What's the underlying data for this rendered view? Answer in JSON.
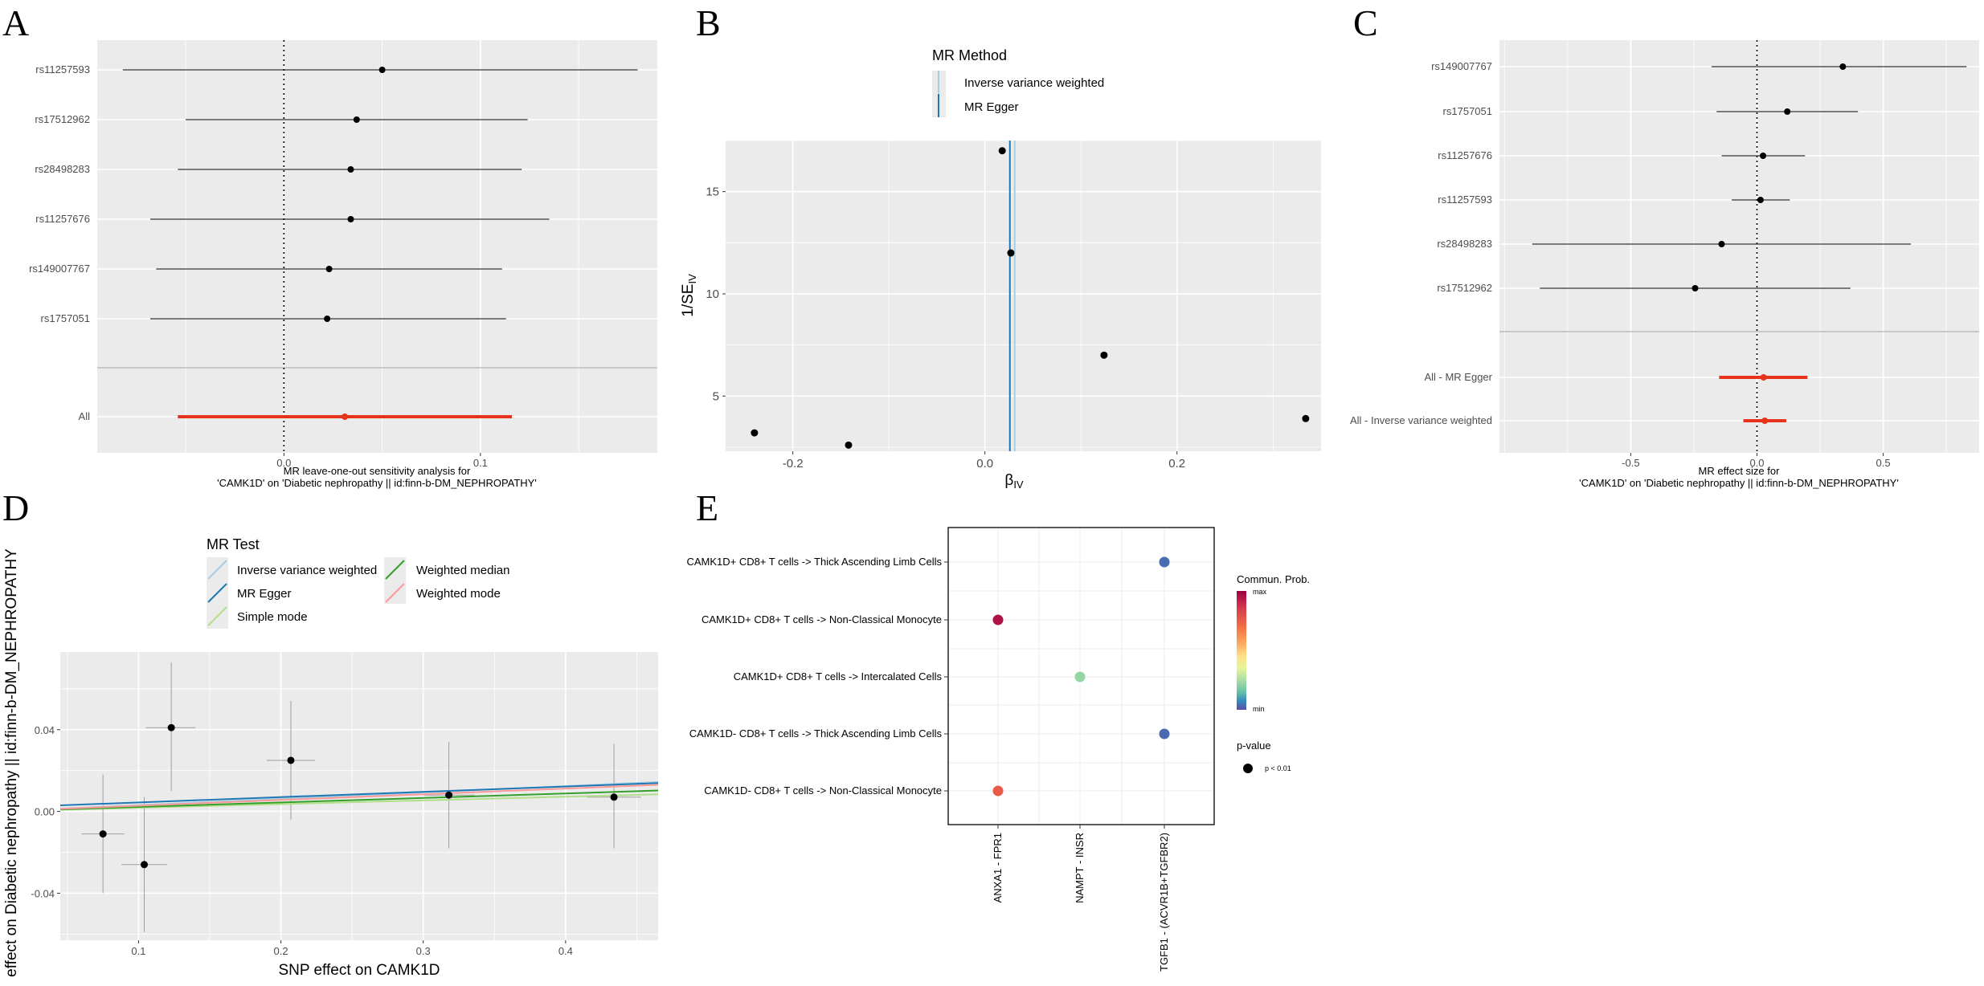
{
  "panel_labels": [
    "A",
    "B",
    "C",
    "D",
    "E"
  ],
  "chart_data": [
    {
      "panel": "A",
      "type": "forest",
      "xlabel_line1": "MR leave-one-out sensitivity analysis for",
      "xlabel_line2": "'CAMK1D' on 'Diabetic nephropathy || id:finn-b-DM_NEPHROPATHY'",
      "xlim": [
        -0.095,
        0.19
      ],
      "xticks": [
        {
          "v": 0.0,
          "label": "0.0"
        },
        {
          "v": 0.1,
          "label": "0.1"
        }
      ],
      "rows": [
        {
          "label": "rs11257593",
          "est": 0.05,
          "lo": -0.082,
          "hi": 0.18
        },
        {
          "label": "rs17512962",
          "est": 0.037,
          "lo": -0.05,
          "hi": 0.124
        },
        {
          "label": "rs28498283",
          "est": 0.034,
          "lo": -0.054,
          "hi": 0.121
        },
        {
          "label": "rs11257676",
          "est": 0.034,
          "lo": -0.068,
          "hi": 0.135
        },
        {
          "label": "rs149007767",
          "est": 0.023,
          "lo": -0.065,
          "hi": 0.111
        },
        {
          "label": "rs1757051",
          "est": 0.022,
          "lo": -0.068,
          "hi": 0.113
        }
      ],
      "overall": {
        "label": "All",
        "est": 0.031,
        "lo": -0.054,
        "hi": 0.116,
        "color": "#e8331c"
      }
    },
    {
      "panel": "B",
      "type": "funnel",
      "xlabel": "β",
      "xlabel_sub": "IV",
      "ylabel": "1/SE",
      "ylabel_sub": "IV",
      "xlim": [
        -0.27,
        0.35
      ],
      "ylim": [
        2.3,
        17.5
      ],
      "xticks": [
        {
          "v": -0.2,
          "label": "-0.2"
        },
        {
          "v": 0.0,
          "label": "0.0"
        },
        {
          "v": 0.2,
          "label": "0.2"
        }
      ],
      "yticks": [
        {
          "v": 5,
          "label": "5"
        },
        {
          "v": 10,
          "label": "10"
        },
        {
          "v": 15,
          "label": "15"
        }
      ],
      "points": [
        {
          "x": 0.018,
          "y": 17.0
        },
        {
          "x": 0.027,
          "y": 12.0
        },
        {
          "x": 0.124,
          "y": 7.0
        },
        {
          "x": 0.334,
          "y": 3.9
        },
        {
          "x": -0.24,
          "y": 3.2
        },
        {
          "x": -0.142,
          "y": 2.6
        }
      ],
      "lines": [
        {
          "name": "Inverse variance weighted",
          "x": 0.031,
          "color": "#a6cee3"
        },
        {
          "name": "MR Egger",
          "x": 0.026,
          "color": "#1f78b4"
        }
      ],
      "legend_title": "MR Method",
      "legend": [
        {
          "name": "Inverse variance weighted",
          "color": "#a6cee3"
        },
        {
          "name": "MR Egger",
          "color": "#1f78b4"
        }
      ]
    },
    {
      "panel": "C",
      "type": "forest",
      "xlabel_line1": "MR effect size for",
      "xlabel_line2": "'CAMK1D' on 'Diabetic nephropathy || id:finn-b-DM_NEPHROPATHY'",
      "xlim": [
        -1.02,
        0.88
      ],
      "xticks": [
        {
          "v": -0.5,
          "label": "-0.5"
        },
        {
          "v": 0.0,
          "label": "0.0"
        },
        {
          "v": 0.5,
          "label": "0.5"
        }
      ],
      "rows": [
        {
          "label": "rs149007767",
          "est": 0.34,
          "lo": -0.18,
          "hi": 0.83
        },
        {
          "label": "rs1757051",
          "est": 0.12,
          "lo": -0.16,
          "hi": 0.4
        },
        {
          "label": "rs11257676",
          "est": 0.024,
          "lo": -0.14,
          "hi": 0.19
        },
        {
          "label": "rs11257593",
          "est": 0.014,
          "lo": -0.1,
          "hi": 0.13
        },
        {
          "label": "rs28498283",
          "est": -0.14,
          "lo": -0.89,
          "hi": 0.61
        },
        {
          "label": "rs17512962",
          "est": -0.245,
          "lo": -0.86,
          "hi": 0.37
        }
      ],
      "summary": [
        {
          "label": "All - MR Egger",
          "est": 0.026,
          "lo": -0.15,
          "hi": 0.2,
          "color": "#e8331c"
        },
        {
          "label": "All - Inverse variance weighted",
          "est": 0.031,
          "lo": -0.054,
          "hi": 0.116,
          "color": "#e8331c"
        }
      ]
    },
    {
      "panel": "D",
      "type": "scatter",
      "xlabel": "SNP effect on CAMK1D",
      "ylabel": "effect on Diabetic nephropathy || id:finn-b-DM_NEPHROPATHY",
      "xlim": [
        0.045,
        0.465
      ],
      "ylim": [
        -0.063,
        0.078
      ],
      "xticks": [
        {
          "v": 0.1,
          "label": "0.1"
        },
        {
          "v": 0.2,
          "label": "0.2"
        },
        {
          "v": 0.3,
          "label": "0.3"
        },
        {
          "v": 0.4,
          "label": "0.4"
        }
      ],
      "yticks": [
        {
          "v": -0.04,
          "label": "-0.04"
        },
        {
          "v": 0.0,
          "label": "0.00"
        },
        {
          "v": 0.04,
          "label": "0.04"
        }
      ],
      "points": [
        {
          "x": 0.075,
          "y": -0.011,
          "xlo": 0.06,
          "xhi": 0.09,
          "ylo": -0.04,
          "yhi": 0.018
        },
        {
          "x": 0.104,
          "y": -0.026,
          "xlo": 0.088,
          "xhi": 0.12,
          "ylo": -0.059,
          "yhi": 0.007
        },
        {
          "x": 0.123,
          "y": 0.041,
          "xlo": 0.105,
          "xhi": 0.14,
          "ylo": 0.01,
          "yhi": 0.073
        },
        {
          "x": 0.207,
          "y": 0.025,
          "xlo": 0.19,
          "xhi": 0.224,
          "ylo": -0.004,
          "yhi": 0.054
        },
        {
          "x": 0.318,
          "y": 0.008,
          "xlo": 0.3,
          "xhi": 0.336,
          "ylo": -0.018,
          "yhi": 0.034
        },
        {
          "x": 0.434,
          "y": 0.007,
          "xlo": 0.415,
          "xhi": 0.453,
          "ylo": -0.018,
          "yhi": 0.033
        }
      ],
      "lines": [
        {
          "name": "Inverse variance weighted",
          "slope": 0.031,
          "intercept": 0.0,
          "color": "#a6cee3"
        },
        {
          "name": "MR Egger",
          "slope": 0.026,
          "intercept": 0.0018,
          "color": "#1f78b4"
        },
        {
          "name": "Simple mode",
          "slope": 0.018,
          "intercept": 0.0,
          "color": "#b2df8a"
        },
        {
          "name": "Weighted median",
          "slope": 0.022,
          "intercept": 0.0,
          "color": "#33a02c"
        },
        {
          "name": "Weighted mode",
          "slope": 0.028,
          "intercept": 0.0,
          "color": "#fb9a99"
        }
      ],
      "legend_title": "MR Test",
      "legend": [
        {
          "name": "Inverse variance weighted",
          "color": "#a6cee3"
        },
        {
          "name": "MR Egger",
          "color": "#1f78b4"
        },
        {
          "name": "Simple mode",
          "color": "#b2df8a"
        },
        {
          "name": "Weighted median",
          "color": "#33a02c"
        },
        {
          "name": "Weighted mode",
          "color": "#fb9a99"
        }
      ]
    },
    {
      "panel": "E",
      "type": "dotplot",
      "rows": [
        "CAMK1D+ CD8+ T cells -> Thick Ascending Limb Cells",
        "CAMK1D+ CD8+ T cells -> Non-Classical Monocyte",
        "CAMK1D+ CD8+ T cells -> Intercalated Cells",
        "CAMK1D- CD8+ T cells -> Thick Ascending Limb Cells",
        "CAMK1D- CD8+ T cells -> Non-Classical Monocyte"
      ],
      "columns": [
        "ANXA1 - FPR1",
        "NAMPT - INSR",
        "TGFB1 - (ACVR1B+TGFBR2)"
      ],
      "points": [
        {
          "row": 0,
          "col": 2,
          "prob": 0.06
        },
        {
          "row": 1,
          "col": 0,
          "prob": 0.97
        },
        {
          "row": 2,
          "col": 1,
          "prob": 0.3
        },
        {
          "row": 3,
          "col": 2,
          "prob": 0.05
        },
        {
          "row": 4,
          "col": 0,
          "prob": 0.82
        }
      ],
      "colorbar_title": "Commun. Prob.",
      "colorbar_max": "max",
      "colorbar_min": "min",
      "pvalue_title": "p-value",
      "pvalue_label": "p < 0.01"
    }
  ]
}
